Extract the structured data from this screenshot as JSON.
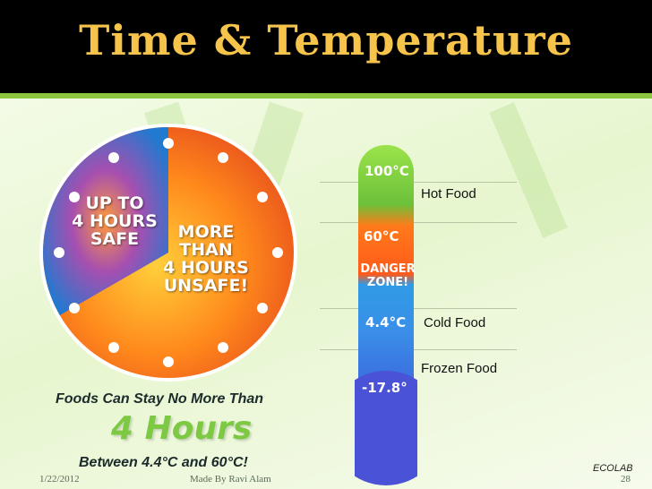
{
  "slide": {
    "title": "Time & Temperature",
    "date": "1/22/2012",
    "author": "Made By Ravi Alam",
    "page_number": "28",
    "brand": "ECOLAB"
  },
  "clock": {
    "safe_label": [
      "UP TO",
      "4 HOURS",
      "SAFE"
    ],
    "unsafe_label": [
      "MORE",
      "THAN",
      "4 HOURS",
      "UNSAFE!"
    ],
    "safe_fraction": 0.333,
    "safe_color": "#1e73c8",
    "unsafe_color": "#ff7a1c"
  },
  "thermometer": {
    "top_mark": "100°C",
    "danger_upper": "60°C",
    "danger_label": [
      "DANGER",
      "ZONE!"
    ],
    "danger_lower": "4.4°C",
    "bottom_mark": "-17.8°",
    "zones": {
      "hot": "Hot Food",
      "cold": "Cold Food",
      "frozen": "Frozen Food"
    },
    "colors": {
      "hot": "#7cc83b",
      "danger": "#ff6a1a",
      "cold": "#3aa0e8",
      "frozen": "#2c6fd8"
    }
  },
  "message": {
    "line1": "Foods Can Stay No More Than",
    "highlight": "4 Hours",
    "line2": "Between 4.4°C and 60°C!"
  }
}
